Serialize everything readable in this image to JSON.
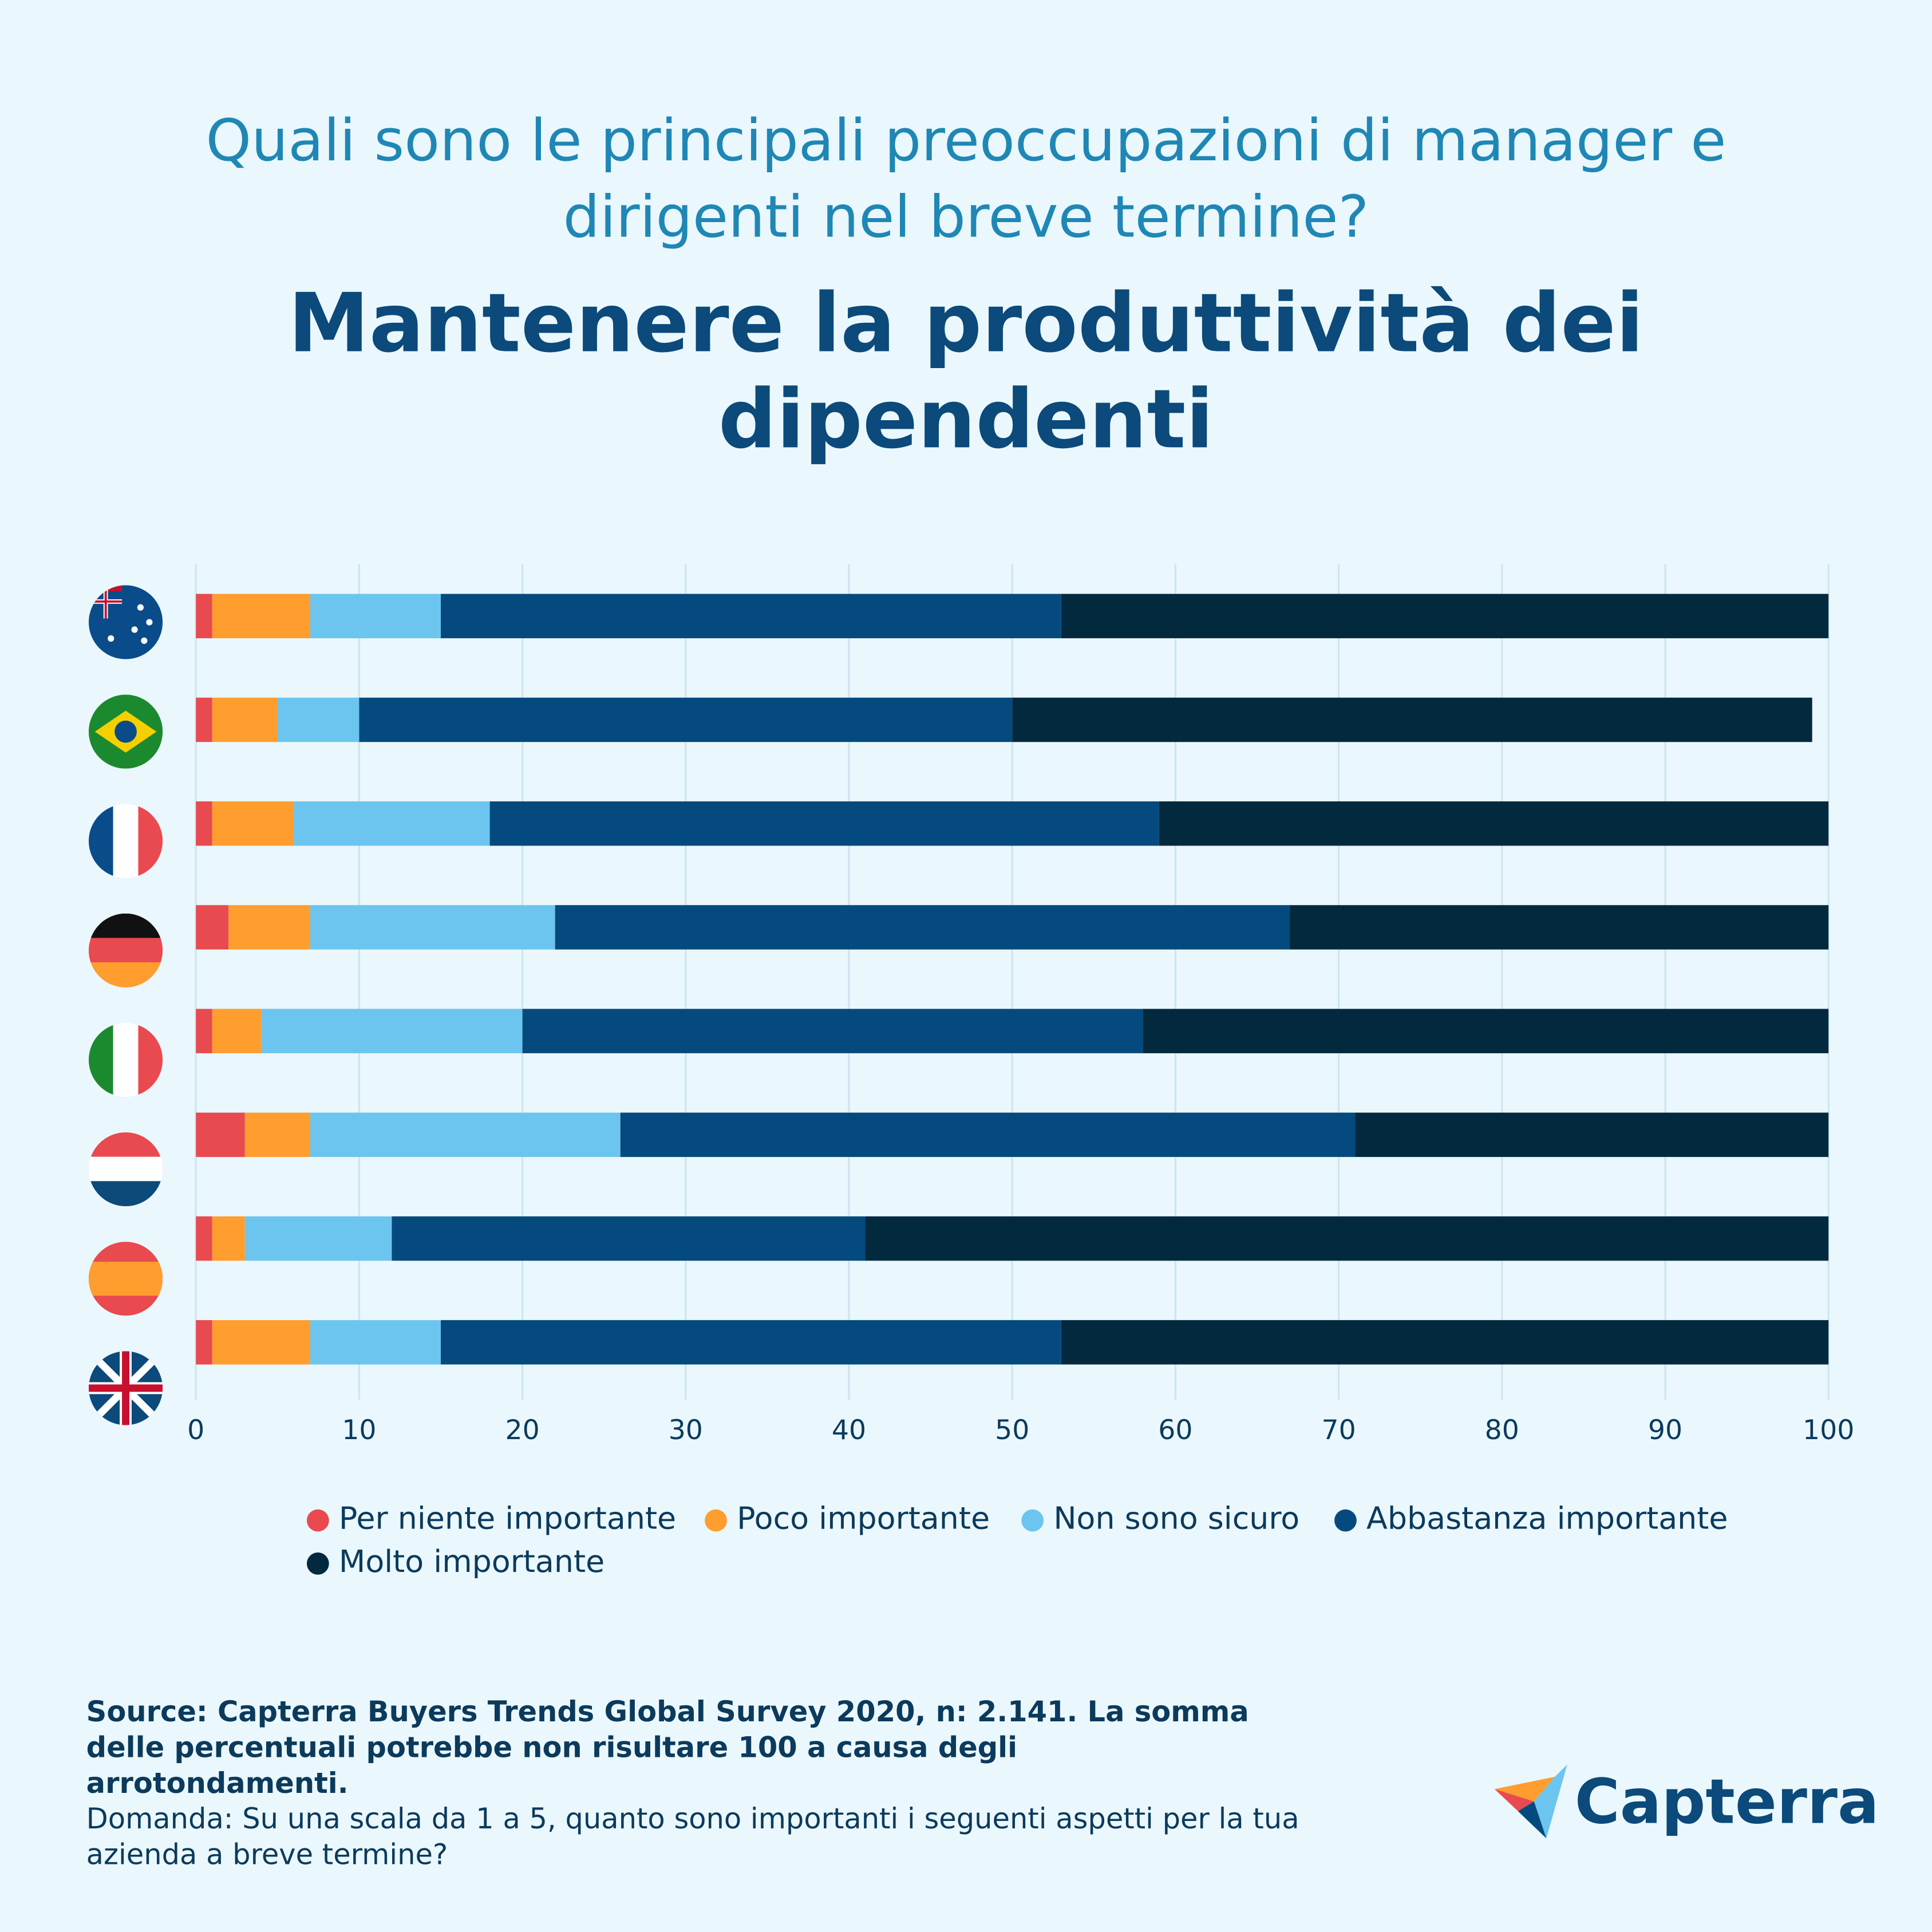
{
  "chart_data": {
    "type": "stacked-bar-horizontal",
    "subtitle": "Quali sono le principali preoccupazioni di manager e dirigenti nel breve termine?",
    "title": "Mantenere la produttività dei dipendenti",
    "categories": [
      null,
      null,
      null,
      null,
      null,
      null,
      null,
      null
    ],
    "series": [
      {
        "name": "Per niente importante",
        "color": "#e84a4f",
        "values": [
          1,
          1,
          1,
          2,
          1,
          3,
          1,
          1
        ]
      },
      {
        "name": "Poco importante",
        "color": "#ff9d2e",
        "values": [
          6,
          4,
          5,
          5,
          3,
          4,
          2,
          6
        ]
      },
      {
        "name": "Non sono sicuro",
        "color": "#6cc5ee",
        "values": [
          8,
          5,
          12,
          15,
          16,
          19,
          9,
          8
        ]
      },
      {
        "name": "Abbastanza importante",
        "color": "#044a7e",
        "values": [
          38,
          40,
          41,
          45,
          38,
          45,
          29,
          38
        ]
      },
      {
        "name": "Molto importante",
        "color": "#03293f",
        "values": [
          47,
          49,
          41,
          33,
          42,
          29,
          59,
          47
        ]
      }
    ],
    "xlim": [
      0,
      100
    ],
    "xticks": [
      0,
      10,
      20,
      30,
      40,
      50,
      60,
      70,
      80,
      90,
      100
    ],
    "grid": true,
    "source_note": "Source: Capterra Buyers Trends Global Survey 2020, n: 2.141. La somma delle percentuali potrebbe non risultare 100 a causa degli arrotondamenti.",
    "question": "Domanda: Su una scala da 1 a 5, quanto sono importanti i seguenti aspetti per la tua azienda a breve termine?",
    "brand": "Capterra"
  }
}
